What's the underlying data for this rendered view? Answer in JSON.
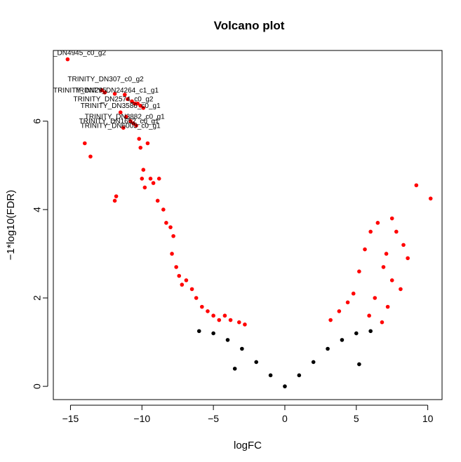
{
  "chart_data": {
    "type": "scatter",
    "title": "Volcano plot",
    "xlabel": "logFC",
    "ylabel": "−1*log10(FDR)",
    "xlim": [
      -16.2,
      11.0
    ],
    "ylim": [
      -0.3,
      7.6
    ],
    "x_ticks": [
      -15,
      -10,
      -5,
      0,
      5,
      10
    ],
    "x_tick_labels": [
      "−15",
      "−10",
      "−5",
      "0",
      "5",
      "10"
    ],
    "y_ticks": [
      0,
      2,
      4,
      6
    ],
    "y_tick_labels": [
      "0",
      "2",
      "4",
      "6"
    ],
    "significance_threshold": 1.3,
    "colors": {
      "significant": "#ff0000",
      "not_significant": "#000000"
    },
    "series": [
      {
        "color": "#ff0000",
        "points": [
          [
            -15.2,
            7.4
          ],
          [
            -14.0,
            5.5
          ],
          [
            -13.6,
            5.2
          ],
          [
            -11.9,
            4.2
          ],
          [
            -11.8,
            4.3
          ],
          [
            -12.8,
            6.7
          ],
          [
            -12.6,
            6.65
          ],
          [
            -11.9,
            6.62
          ],
          [
            -11.2,
            6.6
          ],
          [
            -11.0,
            6.5
          ],
          [
            -10.7,
            6.45
          ],
          [
            -10.5,
            6.4
          ],
          [
            -10.3,
            6.4
          ],
          [
            -10.1,
            6.35
          ],
          [
            -9.9,
            6.3
          ],
          [
            -11.5,
            6.2
          ],
          [
            -11.1,
            6.1
          ],
          [
            -10.8,
            6.0
          ],
          [
            -10.6,
            5.95
          ],
          [
            -10.4,
            5.9
          ],
          [
            -11.3,
            5.85
          ],
          [
            -10.2,
            5.6
          ],
          [
            -10.1,
            5.4
          ],
          [
            -9.6,
            5.5
          ],
          [
            -9.9,
            4.9
          ],
          [
            -10.0,
            4.7
          ],
          [
            -9.8,
            4.5
          ],
          [
            -9.4,
            4.7
          ],
          [
            -9.2,
            4.6
          ],
          [
            -8.8,
            4.7
          ],
          [
            -8.9,
            4.2
          ],
          [
            -8.5,
            4.0
          ],
          [
            -8.3,
            3.7
          ],
          [
            -8.0,
            3.6
          ],
          [
            -7.8,
            3.4
          ],
          [
            -7.9,
            3.0
          ],
          [
            -7.6,
            2.7
          ],
          [
            -7.4,
            2.5
          ],
          [
            -7.2,
            2.3
          ],
          [
            -6.9,
            2.4
          ],
          [
            -6.5,
            2.2
          ],
          [
            -6.2,
            2.0
          ],
          [
            -5.8,
            1.8
          ],
          [
            -5.4,
            1.7
          ],
          [
            -5.0,
            1.6
          ],
          [
            -4.6,
            1.5
          ],
          [
            -4.2,
            1.6
          ],
          [
            -3.8,
            1.5
          ],
          [
            -3.2,
            1.45
          ],
          [
            -2.8,
            1.4
          ],
          [
            9.2,
            4.55
          ],
          [
            10.2,
            4.25
          ],
          [
            7.5,
            3.8
          ],
          [
            6.5,
            3.7
          ],
          [
            6.0,
            3.5
          ],
          [
            7.8,
            3.5
          ],
          [
            8.3,
            3.2
          ],
          [
            5.6,
            3.1
          ],
          [
            7.1,
            3.0
          ],
          [
            8.6,
            2.9
          ],
          [
            6.9,
            2.7
          ],
          [
            5.2,
            2.6
          ],
          [
            7.5,
            2.4
          ],
          [
            8.1,
            2.2
          ],
          [
            4.8,
            2.1
          ],
          [
            6.3,
            2.0
          ],
          [
            4.4,
            1.9
          ],
          [
            7.2,
            1.8
          ],
          [
            3.8,
            1.7
          ],
          [
            5.9,
            1.6
          ],
          [
            3.2,
            1.5
          ],
          [
            6.8,
            1.45
          ]
        ]
      },
      {
        "color": "#000000",
        "points": [
          [
            -6.0,
            1.25
          ],
          [
            -5.0,
            1.2
          ],
          [
            -4.0,
            1.05
          ],
          [
            -3.0,
            0.85
          ],
          [
            -2.0,
            0.55
          ],
          [
            -1.0,
            0.25
          ],
          [
            0.0,
            0.0
          ],
          [
            1.0,
            0.25
          ],
          [
            2.0,
            0.55
          ],
          [
            3.0,
            0.85
          ],
          [
            4.0,
            1.05
          ],
          [
            5.0,
            1.2
          ],
          [
            6.0,
            1.25
          ],
          [
            5.2,
            0.5
          ],
          [
            -3.5,
            0.4
          ]
        ]
      }
    ],
    "point_labels": [
      {
        "text": "_DN4945_c0_g2",
        "x": -16.2,
        "y": 7.5
      },
      {
        "text": "TRINITY_DN307_c0_g2",
        "x": -15.2,
        "y": 6.9
      },
      {
        "text": "TRINITY_DN295",
        "x": -16.2,
        "y": 6.65
      },
      {
        "text": "TRINITY_DN24264_c1_g1",
        "x": -14.7,
        "y": 6.65
      },
      {
        "text": "TRINITY_DN2574_c0_g2",
        "x": -14.8,
        "y": 6.45
      },
      {
        "text": "TRINITY_DN3586_c0_g1",
        "x": -14.3,
        "y": 6.3
      },
      {
        "text": "TRINITY_DN3882_c0_g1",
        "x": -14.0,
        "y": 6.05
      },
      {
        "text": "TRINITY_DN1652_c0_g1",
        "x": -14.4,
        "y": 5.95
      },
      {
        "text": "TRINITY_DN6005_c0_g1",
        "x": -14.3,
        "y": 5.85
      }
    ]
  }
}
